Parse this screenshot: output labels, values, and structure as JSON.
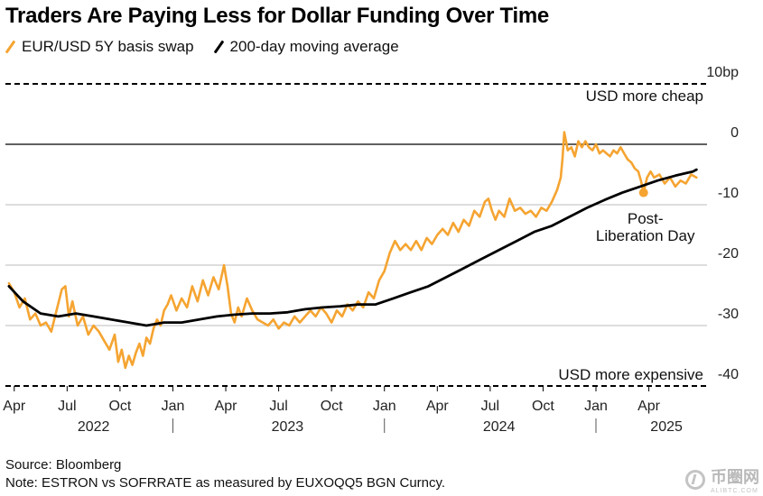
{
  "chart_data": {
    "type": "line",
    "title": "Traders Are Paying Less for Dollar Funding Over Time",
    "ylim": [
      -40,
      10
    ],
    "y_ticks": [
      {
        "value": 10,
        "label": "10bp"
      },
      {
        "value": 0,
        "label": "0"
      },
      {
        "value": -10,
        "label": "-10"
      },
      {
        "value": -20,
        "label": "-20"
      },
      {
        "value": -30,
        "label": "-30"
      },
      {
        "value": -40,
        "label": "-40"
      }
    ],
    "x_month_ticks": [
      {
        "t": 0,
        "label": "Apr"
      },
      {
        "t": 3,
        "label": "Jul"
      },
      {
        "t": 6,
        "label": "Oct"
      },
      {
        "t": 9,
        "label": "Jan"
      },
      {
        "t": 12,
        "label": "Apr"
      },
      {
        "t": 15,
        "label": "Jul"
      },
      {
        "t": 18,
        "label": "Oct"
      },
      {
        "t": 21,
        "label": "Jan"
      },
      {
        "t": 24,
        "label": "Apr"
      },
      {
        "t": 27,
        "label": "Jul"
      },
      {
        "t": 30,
        "label": "Oct"
      },
      {
        "t": 33,
        "label": "Jan"
      },
      {
        "t": 36,
        "label": "Apr"
      }
    ],
    "year_labels": [
      {
        "t": 4.5,
        "label": "2022"
      },
      {
        "t": 15.5,
        "label": "2023"
      },
      {
        "t": 27.5,
        "label": "2024"
      },
      {
        "t": 37,
        "label": "2025"
      }
    ],
    "year_dividers": [
      9.0,
      21.0,
      33.0
    ],
    "x_range": [
      -0.5,
      39.3
    ],
    "series": [
      {
        "name": "EUR/USD 5Y basis swap",
        "color": "#f5a431",
        "points": [
          [
            -0.3,
            -23.0
          ],
          [
            0.0,
            -24.5
          ],
          [
            0.3,
            -27.0
          ],
          [
            0.6,
            -25.5
          ],
          [
            0.9,
            -29.0
          ],
          [
            1.2,
            -28.0
          ],
          [
            1.5,
            -30.0
          ],
          [
            1.8,
            -29.5
          ],
          [
            2.1,
            -31.0
          ],
          [
            2.4,
            -27.5
          ],
          [
            2.7,
            -24.0
          ],
          [
            2.9,
            -23.5
          ],
          [
            3.1,
            -28.5
          ],
          [
            3.3,
            -26.0
          ],
          [
            3.6,
            -30.0
          ],
          [
            3.9,
            -28.5
          ],
          [
            4.2,
            -31.5
          ],
          [
            4.5,
            -30.0
          ],
          [
            4.8,
            -31.0
          ],
          [
            5.1,
            -32.5
          ],
          [
            5.4,
            -34.0
          ],
          [
            5.7,
            -31.5
          ],
          [
            5.9,
            -36.0
          ],
          [
            6.1,
            -34.0
          ],
          [
            6.3,
            -37.0
          ],
          [
            6.5,
            -35.0
          ],
          [
            6.7,
            -36.5
          ],
          [
            6.9,
            -34.5
          ],
          [
            7.1,
            -33.0
          ],
          [
            7.3,
            -35.0
          ],
          [
            7.5,
            -32.0
          ],
          [
            7.7,
            -33.0
          ],
          [
            7.9,
            -30.5
          ],
          [
            8.1,
            -29.0
          ],
          [
            8.3,
            -30.0
          ],
          [
            8.5,
            -27.5
          ],
          [
            8.7,
            -26.5
          ],
          [
            8.9,
            -25.0
          ],
          [
            9.2,
            -27.5
          ],
          [
            9.5,
            -25.5
          ],
          [
            9.8,
            -27.0
          ],
          [
            10.1,
            -23.5
          ],
          [
            10.4,
            -26.0
          ],
          [
            10.7,
            -22.5
          ],
          [
            11.0,
            -25.0
          ],
          [
            11.3,
            -22.0
          ],
          [
            11.6,
            -24.0
          ],
          [
            11.9,
            -20.0
          ],
          [
            12.1,
            -23.5
          ],
          [
            12.3,
            -28.0
          ],
          [
            12.5,
            -29.5
          ],
          [
            12.7,
            -27.0
          ],
          [
            12.9,
            -28.5
          ],
          [
            13.2,
            -25.5
          ],
          [
            13.5,
            -27.5
          ],
          [
            13.8,
            -29.0
          ],
          [
            14.1,
            -29.5
          ],
          [
            14.4,
            -30.0
          ],
          [
            14.7,
            -29.0
          ],
          [
            15.0,
            -30.5
          ],
          [
            15.3,
            -29.5
          ],
          [
            15.6,
            -30.0
          ],
          [
            15.9,
            -28.5
          ],
          [
            16.2,
            -29.5
          ],
          [
            16.5,
            -28.5
          ],
          [
            16.8,
            -27.5
          ],
          [
            17.1,
            -28.5
          ],
          [
            17.4,
            -27.0
          ],
          [
            17.7,
            -28.0
          ],
          [
            18.0,
            -29.5
          ],
          [
            18.3,
            -27.5
          ],
          [
            18.6,
            -28.5
          ],
          [
            18.9,
            -26.5
          ],
          [
            19.2,
            -27.5
          ],
          [
            19.5,
            -26.0
          ],
          [
            19.8,
            -27.0
          ],
          [
            20.1,
            -24.5
          ],
          [
            20.4,
            -25.5
          ],
          [
            20.7,
            -22.5
          ],
          [
            21.0,
            -21.0
          ],
          [
            21.3,
            -18.0
          ],
          [
            21.6,
            -16.0
          ],
          [
            21.9,
            -17.5
          ],
          [
            22.2,
            -16.5
          ],
          [
            22.5,
            -17.5
          ],
          [
            22.8,
            -16.0
          ],
          [
            23.1,
            -17.5
          ],
          [
            23.4,
            -15.5
          ],
          [
            23.7,
            -16.5
          ],
          [
            24.0,
            -15.0
          ],
          [
            24.3,
            -14.0
          ],
          [
            24.6,
            -15.0
          ],
          [
            24.9,
            -13.0
          ],
          [
            25.2,
            -14.5
          ],
          [
            25.5,
            -12.5
          ],
          [
            25.8,
            -13.5
          ],
          [
            26.1,
            -11.0
          ],
          [
            26.4,
            -12.0
          ],
          [
            26.7,
            -9.5
          ],
          [
            26.9,
            -9.0
          ],
          [
            27.1,
            -11.0
          ],
          [
            27.3,
            -12.5
          ],
          [
            27.5,
            -11.0
          ],
          [
            27.8,
            -12.0
          ],
          [
            28.1,
            -9.0
          ],
          [
            28.4,
            -11.0
          ],
          [
            28.7,
            -10.5
          ],
          [
            29.0,
            -11.5
          ],
          [
            29.3,
            -11.0
          ],
          [
            29.6,
            -12.0
          ],
          [
            29.9,
            -10.5
          ],
          [
            30.2,
            -11.0
          ],
          [
            30.5,
            -9.5
          ],
          [
            30.8,
            -7.5
          ],
          [
            31.0,
            -5.5
          ],
          [
            31.1,
            -2.5
          ],
          [
            31.2,
            2.0
          ],
          [
            31.4,
            -1.0
          ],
          [
            31.6,
            -0.5
          ],
          [
            31.8,
            -2.0
          ],
          [
            32.0,
            0.5
          ],
          [
            32.2,
            -0.5
          ],
          [
            32.4,
            0.5
          ],
          [
            32.6,
            -0.5
          ],
          [
            32.8,
            -1.0
          ],
          [
            33.0,
            0.0
          ],
          [
            33.2,
            -1.5
          ],
          [
            33.4,
            -1.0
          ],
          [
            33.6,
            -1.5
          ],
          [
            33.8,
            -2.0
          ],
          [
            34.0,
            -1.0
          ],
          [
            34.2,
            -1.5
          ],
          [
            34.4,
            -0.5
          ],
          [
            34.6,
            -1.5
          ],
          [
            34.8,
            -2.5
          ],
          [
            35.0,
            -3.0
          ],
          [
            35.2,
            -4.0
          ],
          [
            35.4,
            -4.5
          ],
          [
            35.55,
            -6.0
          ],
          [
            35.7,
            -8.0
          ],
          [
            35.9,
            -5.5
          ],
          [
            36.1,
            -4.5
          ],
          [
            36.3,
            -5.5
          ],
          [
            36.6,
            -5.0
          ],
          [
            36.9,
            -6.5
          ],
          [
            37.2,
            -5.5
          ],
          [
            37.5,
            -7.0
          ],
          [
            37.8,
            -6.0
          ],
          [
            38.1,
            -6.5
          ],
          [
            38.4,
            -5.0
          ],
          [
            38.7,
            -5.5
          ]
        ]
      },
      {
        "name": "200-day moving average",
        "color": "#000000",
        "points": [
          [
            -0.3,
            -23.5
          ],
          [
            0.5,
            -26.0
          ],
          [
            1.5,
            -28.0
          ],
          [
            2.5,
            -28.5
          ],
          [
            3.5,
            -28.0
          ],
          [
            4.5,
            -28.5
          ],
          [
            5.5,
            -29.0
          ],
          [
            6.5,
            -29.5
          ],
          [
            7.5,
            -30.0
          ],
          [
            8.5,
            -29.5
          ],
          [
            9.5,
            -29.5
          ],
          [
            10.5,
            -29.0
          ],
          [
            11.5,
            -28.5
          ],
          [
            12.5,
            -28.2
          ],
          [
            13.5,
            -28.0
          ],
          [
            14.5,
            -28.0
          ],
          [
            15.5,
            -27.8
          ],
          [
            16.5,
            -27.3
          ],
          [
            17.5,
            -27.0
          ],
          [
            18.5,
            -26.8
          ],
          [
            19.5,
            -26.5
          ],
          [
            20.5,
            -26.5
          ],
          [
            21.5,
            -25.5
          ],
          [
            22.5,
            -24.5
          ],
          [
            23.5,
            -23.5
          ],
          [
            24.5,
            -22.0
          ],
          [
            25.5,
            -20.5
          ],
          [
            26.5,
            -19.0
          ],
          [
            27.5,
            -17.5
          ],
          [
            28.5,
            -16.0
          ],
          [
            29.5,
            -14.5
          ],
          [
            30.5,
            -13.5
          ],
          [
            31.5,
            -12.0
          ],
          [
            32.5,
            -10.5
          ],
          [
            33.5,
            -9.2
          ],
          [
            34.5,
            -8.0
          ],
          [
            35.5,
            -7.0
          ],
          [
            36.5,
            -6.0
          ],
          [
            37.5,
            -5.2
          ],
          [
            38.5,
            -4.5
          ],
          [
            38.7,
            -4.2
          ]
        ]
      }
    ],
    "annotations": [
      {
        "text": "USD more cheap",
        "value": 10
      },
      {
        "text": "USD more expensive",
        "value": -40
      },
      {
        "text": "Post-",
        "t": 35.7,
        "value": -8
      },
      {
        "text": "Liberation Day",
        "t": 35.7,
        "value": -8
      }
    ],
    "highlight_point": {
      "t": 35.7,
      "value": -8.0
    }
  },
  "legend": {
    "item1": "EUR/USD 5Y basis swap",
    "item2": "200-day moving average"
  },
  "footer": {
    "source": "Source: Bloomberg",
    "note": "Note: ESTRON vs SOFRRATE as measured by EUXOQQ5 BGN Curncy."
  },
  "watermark": {
    "text": "币圈网",
    "sub": "ALIBTC.COM"
  },
  "colors": {
    "swap": "#f5a431",
    "ma": "#000000",
    "axis": "#000000",
    "grid": "#bbbbbb"
  }
}
